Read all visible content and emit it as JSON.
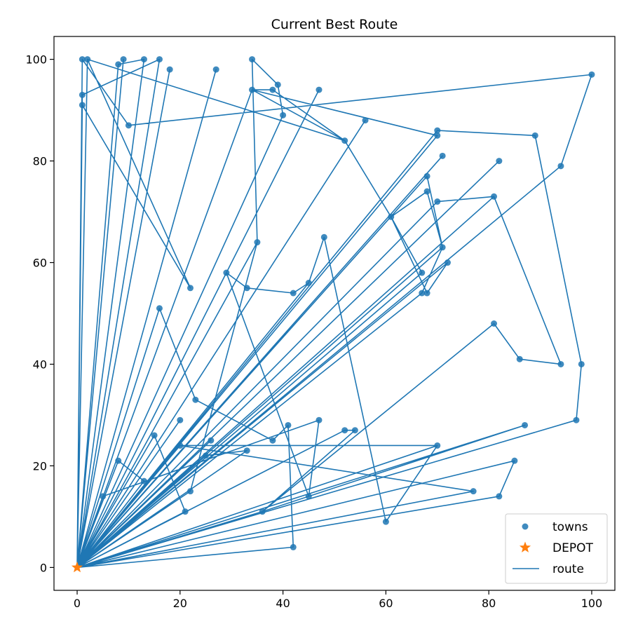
{
  "chart_data": {
    "type": "scatter",
    "title": "Current Best Route",
    "xlabel": "",
    "ylabel": "",
    "xlim": [
      -4.5,
      104.5
    ],
    "ylim": [
      -4.5,
      104.5
    ],
    "xticks": [
      0,
      20,
      40,
      60,
      80,
      100
    ],
    "yticks": [
      0,
      20,
      40,
      60,
      80,
      100
    ],
    "grid": false,
    "legend_position": "lower-right",
    "colors": {
      "towns": "#1f77b4",
      "depot": "#ff7f0e",
      "route": "#1f77b4"
    },
    "depot": {
      "name": "DEPOT",
      "x": 0,
      "y": 0
    },
    "towns": {
      "name": "towns",
      "points": [
        [
          1,
          100
        ],
        [
          2,
          100
        ],
        [
          9,
          100
        ],
        [
          13,
          100
        ],
        [
          16,
          100
        ],
        [
          8,
          99
        ],
        [
          18,
          98
        ],
        [
          1,
          93
        ],
        [
          1,
          91
        ],
        [
          10,
          87
        ],
        [
          22,
          55
        ],
        [
          16,
          51
        ],
        [
          27,
          98
        ],
        [
          34,
          100
        ],
        [
          34,
          94
        ],
        [
          38,
          94
        ],
        [
          39,
          95
        ],
        [
          40,
          89
        ],
        [
          47,
          94
        ],
        [
          52,
          84
        ],
        [
          56,
          88
        ],
        [
          70,
          86
        ],
        [
          70,
          85
        ],
        [
          71,
          81
        ],
        [
          82,
          80
        ],
        [
          89,
          85
        ],
        [
          100,
          97
        ],
        [
          94,
          79
        ],
        [
          98,
          40
        ],
        [
          97,
          29
        ],
        [
          94,
          40
        ],
        [
          86,
          41
        ],
        [
          81,
          48
        ],
        [
          81,
          73
        ],
        [
          70,
          72
        ],
        [
          68,
          74
        ],
        [
          68,
          77
        ],
        [
          71,
          63
        ],
        [
          72,
          60
        ],
        [
          67,
          58
        ],
        [
          67,
          54
        ],
        [
          68,
          54
        ],
        [
          61,
          69
        ],
        [
          48,
          65
        ],
        [
          45,
          56
        ],
        [
          42,
          54
        ],
        [
          33,
          55
        ],
        [
          29,
          58
        ],
        [
          35,
          64
        ],
        [
          26,
          25
        ],
        [
          22,
          15
        ],
        [
          21,
          11
        ],
        [
          15,
          26
        ],
        [
          20,
          24
        ],
        [
          25,
          22
        ],
        [
          20,
          29
        ],
        [
          23,
          33
        ],
        [
          38,
          25
        ],
        [
          33,
          23
        ],
        [
          36,
          11
        ],
        [
          41,
          28
        ],
        [
          45,
          14
        ],
        [
          47,
          29
        ],
        [
          52,
          27
        ],
        [
          54,
          27
        ],
        [
          60,
          9
        ],
        [
          70,
          24
        ],
        [
          77,
          15
        ],
        [
          82,
          14
        ],
        [
          85,
          21
        ],
        [
          87,
          28
        ],
        [
          42,
          4
        ],
        [
          13,
          17
        ],
        [
          8,
          21
        ],
        [
          5,
          14
        ]
      ]
    },
    "route": {
      "name": "route",
      "points": [
        [
          0,
          0
        ],
        [
          1,
          100
        ],
        [
          10,
          87
        ],
        [
          100,
          97
        ],
        [
          94,
          79
        ],
        [
          0,
          0
        ],
        [
          2,
          100
        ],
        [
          22,
          55
        ],
        [
          1,
          91
        ],
        [
          0,
          0
        ],
        [
          9,
          100
        ],
        [
          0,
          0
        ],
        [
          13,
          100
        ],
        [
          8,
          99
        ],
        [
          0,
          0
        ],
        [
          16,
          100
        ],
        [
          1,
          93
        ],
        [
          0,
          0
        ],
        [
          18,
          98
        ],
        [
          0,
          0
        ],
        [
          27,
          98
        ],
        [
          0,
          0
        ],
        [
          40,
          89
        ],
        [
          39,
          95
        ],
        [
          34,
          100
        ],
        [
          35,
          64
        ],
        [
          0,
          0
        ],
        [
          47,
          94
        ],
        [
          0,
          0
        ],
        [
          34,
          94
        ],
        [
          52,
          84
        ],
        [
          2,
          100
        ],
        [
          0,
          0
        ],
        [
          56,
          88
        ],
        [
          0,
          0
        ],
        [
          70,
          86
        ],
        [
          89,
          85
        ],
        [
          98,
          40
        ],
        [
          97,
          29
        ],
        [
          0,
          0
        ],
        [
          70,
          85
        ],
        [
          34,
          94
        ],
        [
          38,
          94
        ],
        [
          52,
          84
        ],
        [
          61,
          69
        ],
        [
          68,
          54
        ],
        [
          72,
          60
        ],
        [
          0,
          0
        ],
        [
          71,
          81
        ],
        [
          0,
          0
        ],
        [
          82,
          80
        ],
        [
          0,
          0
        ],
        [
          81,
          73
        ],
        [
          94,
          40
        ],
        [
          86,
          41
        ],
        [
          81,
          48
        ],
        [
          36,
          11
        ],
        [
          0,
          0
        ],
        [
          68,
          77
        ],
        [
          71,
          63
        ],
        [
          0,
          0
        ],
        [
          67,
          58
        ],
        [
          61,
          69
        ],
        [
          68,
          74
        ],
        [
          71,
          63
        ],
        [
          67,
          54
        ],
        [
          0,
          0
        ],
        [
          70,
          72
        ],
        [
          81,
          73
        ],
        [
          0,
          0
        ],
        [
          45,
          56
        ],
        [
          48,
          65
        ],
        [
          60,
          9
        ],
        [
          70,
          24
        ],
        [
          20,
          24
        ],
        [
          0,
          0
        ],
        [
          29,
          58
        ],
        [
          33,
          55
        ],
        [
          42,
          54
        ],
        [
          45,
          56
        ],
        [
          0,
          0
        ],
        [
          26,
          25
        ],
        [
          0,
          0
        ],
        [
          22,
          15
        ],
        [
          35,
          64
        ],
        [
          0,
          0
        ],
        [
          16,
          51
        ],
        [
          23,
          33
        ],
        [
          38,
          25
        ],
        [
          41,
          28
        ],
        [
          42,
          4
        ],
        [
          0,
          0
        ],
        [
          15,
          26
        ],
        [
          21,
          11
        ],
        [
          0,
          0
        ],
        [
          20,
          29
        ],
        [
          0,
          0
        ],
        [
          25,
          22
        ],
        [
          33,
          23
        ],
        [
          0,
          0
        ],
        [
          29,
          58
        ],
        [
          45,
          14
        ],
        [
          47,
          29
        ],
        [
          5,
          14
        ],
        [
          0,
          0
        ],
        [
          52,
          27
        ],
        [
          54,
          27
        ],
        [
          36,
          11
        ],
        [
          87,
          28
        ],
        [
          0,
          0
        ],
        [
          20,
          24
        ],
        [
          77,
          15
        ],
        [
          0,
          0
        ],
        [
          82,
          14
        ],
        [
          85,
          21
        ],
        [
          0,
          0
        ],
        [
          13,
          17
        ],
        [
          8,
          21
        ],
        [
          0,
          0
        ],
        [
          87,
          28
        ],
        [
          0,
          0
        ],
        [
          70,
          24
        ],
        [
          0,
          0
        ]
      ]
    },
    "legend": [
      "towns",
      "DEPOT",
      "route"
    ]
  }
}
